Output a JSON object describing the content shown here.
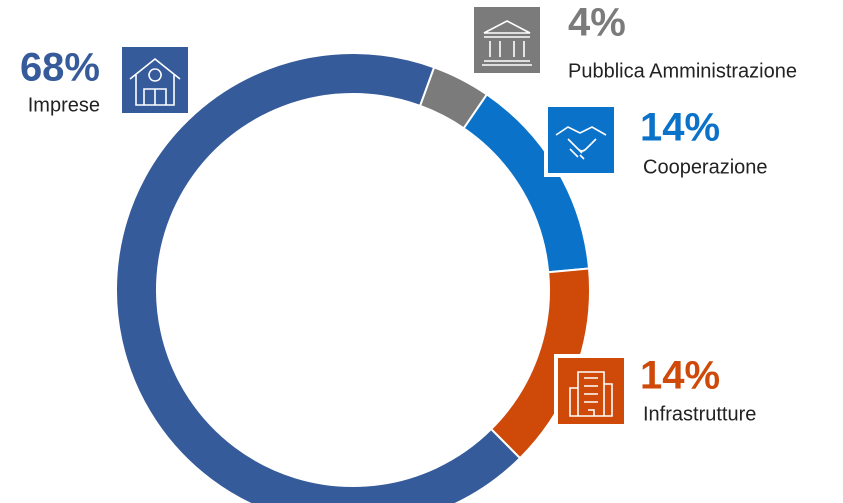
{
  "chart_data": {
    "type": "donut",
    "categories": [
      "Pubblica Amministrazione",
      "Cooperazione",
      "Infrastrutture",
      "Imprese"
    ],
    "values": [
      4,
      14,
      14,
      68
    ],
    "value_labels": [
      "4%",
      "14%",
      "14%",
      "68%"
    ],
    "colors": [
      "#7b7b7b",
      "#0b72c9",
      "#cf4a09",
      "#365b9b"
    ]
  }
}
